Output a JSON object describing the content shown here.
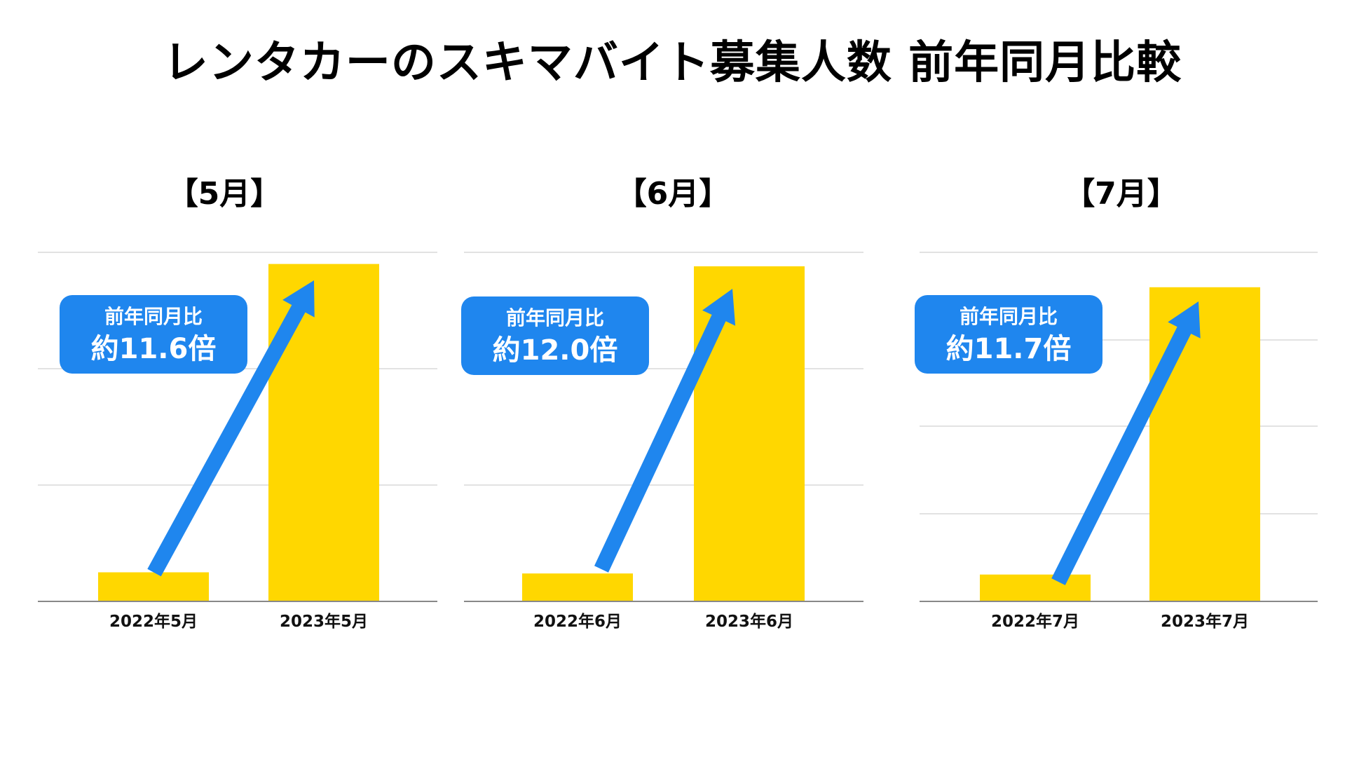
{
  "title": "レンタカーのスキマバイト募集人数 前年同月比較",
  "colors": {
    "bar": "#FFD700",
    "arrow": "#1f86ee",
    "callout": "#1f86ee",
    "grid": "#d9d9d9",
    "axis": "#888888"
  },
  "panels": [
    {
      "heading": "【5月】",
      "callout_line1": "前年同月比",
      "callout_line2": "約11.6倍"
    },
    {
      "heading": "【6月】",
      "callout_line1": "前年同月比",
      "callout_line2": "約12.0倍"
    },
    {
      "heading": "【7月】",
      "callout_line1": "前年同月比",
      "callout_line2": "約11.7倍"
    }
  ],
  "chart_data": [
    {
      "type": "bar",
      "title": "【5月】",
      "categories": [
        "2022年5月",
        "2023年5月"
      ],
      "values": [
        1,
        11.6
      ],
      "ylim": [
        0,
        12
      ],
      "grid": true
    },
    {
      "type": "bar",
      "title": "【6月】",
      "categories": [
        "2022年6月",
        "2023年6月"
      ],
      "values": [
        1,
        12.0
      ],
      "ylim": [
        0,
        12.5
      ],
      "grid": true
    },
    {
      "type": "bar",
      "title": "【7月】",
      "categories": [
        "2022年7月",
        "2023年7月"
      ],
      "values": [
        1,
        11.7
      ],
      "ylim": [
        0,
        13
      ],
      "grid": true
    }
  ]
}
